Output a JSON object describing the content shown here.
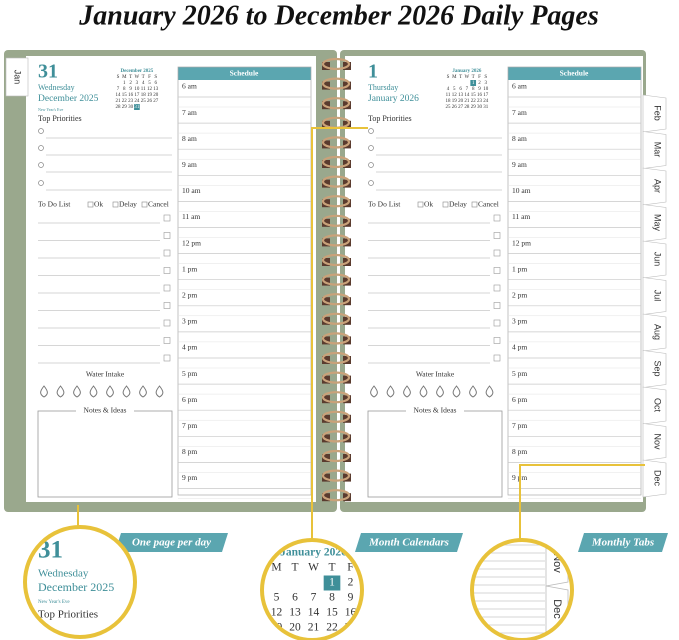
{
  "title": "January 2026 to December 2026 Daily Pages",
  "pages": [
    {
      "tab": "Jan",
      "day": "31",
      "weekday": "Wednesday",
      "month": "December 2025",
      "holiday": "New Year's Eve",
      "priorities_label": "Top Priorities",
      "todo_label": "To Do List",
      "statuses": [
        "Ok",
        "Delay",
        "Cancel"
      ],
      "water_label": "Water Intake",
      "notes_label": "Notes & Ideas",
      "schedule_label": "Schedule",
      "times": [
        "6 am",
        "7 am",
        "8 am",
        "9 am",
        "10 am",
        "11 am",
        "12 pm",
        "1 pm",
        "2 pm",
        "3 pm",
        "4 pm",
        "5 pm",
        "6 pm",
        "7 pm",
        "8 pm",
        "9 pm"
      ],
      "calendar": {
        "title": "December 2025",
        "weekdays": [
          "S",
          "M",
          "T",
          "W",
          "T",
          "F",
          "S"
        ],
        "weeks": [
          [
            null,
            1,
            2,
            3,
            4,
            5,
            6
          ],
          [
            7,
            8,
            9,
            10,
            11,
            12,
            13
          ],
          [
            14,
            15,
            16,
            17,
            18,
            19,
            20
          ],
          [
            21,
            22,
            23,
            24,
            25,
            26,
            27
          ],
          [
            28,
            29,
            30,
            31,
            null,
            null,
            null
          ]
        ]
      }
    },
    {
      "day": "1",
      "weekday": "Thursday",
      "month": "January 2026",
      "priorities_label": "Top Priorities",
      "todo_label": "To Do List",
      "statuses": [
        "Ok",
        "Delay",
        "Cancel"
      ],
      "water_label": "Water Intake",
      "notes_label": "Notes & Ideas",
      "schedule_label": "Schedule",
      "times": [
        "6 am",
        "7 am",
        "8 am",
        "9 am",
        "10 am",
        "11 am",
        "12 pm",
        "1 pm",
        "2 pm",
        "3 pm",
        "4 pm",
        "5 pm",
        "6 pm",
        "7 pm",
        "8 pm",
        "9 pm"
      ],
      "calendar": {
        "title": "January 2026",
        "weekdays": [
          "S",
          "M",
          "T",
          "W",
          "T",
          "F",
          "S"
        ],
        "weeks": [
          [
            null,
            null,
            null,
            null,
            1,
            2,
            3
          ],
          [
            4,
            5,
            6,
            7,
            8,
            9,
            10
          ],
          [
            11,
            12,
            13,
            14,
            15,
            16,
            17
          ],
          [
            18,
            19,
            20,
            21,
            22,
            23,
            24
          ],
          [
            25,
            26,
            27,
            28,
            29,
            30,
            31
          ]
        ]
      }
    }
  ],
  "tabs": [
    "Feb",
    "Mar",
    "Apr",
    "May",
    "Jun",
    "Jul",
    "Aug",
    "Sep",
    "Oct",
    "Nov",
    "Dec"
  ],
  "callouts": [
    "One page per day",
    "Month Calendars",
    "Monthly Tabs"
  ]
}
